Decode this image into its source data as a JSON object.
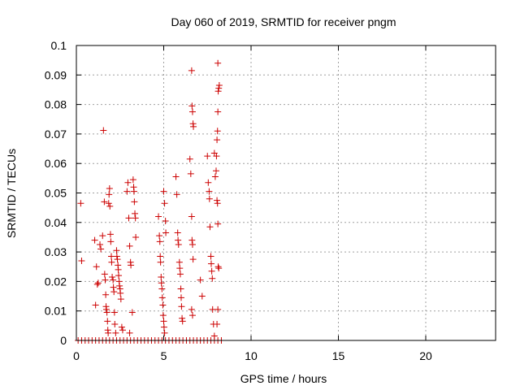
{
  "chart_data": {
    "type": "scatter",
    "title": "Day 060 of 2019, SRMTID for receiver pngm",
    "xlabel": "GPS time / hours",
    "ylabel": "SRMTID / TECUs",
    "xlim": [
      0,
      24
    ],
    "ylim": [
      0,
      0.1
    ],
    "x_ticks": [
      0,
      5,
      10,
      15,
      20
    ],
    "x_tick_labels": [
      "0",
      "5",
      "10",
      "15",
      "20"
    ],
    "y_ticks": [
      0,
      0.01,
      0.02,
      0.03,
      0.04,
      0.05,
      0.06,
      0.07,
      0.08,
      0.09,
      0.1
    ],
    "y_tick_labels": [
      "0",
      "0.01",
      "0.02",
      "0.03",
      "0.04",
      "0.05",
      "0.06",
      "0.07",
      "0.08",
      "0.09",
      "0.1"
    ],
    "grid": true,
    "marker": "plus",
    "color": "#cc0000",
    "series": [
      {
        "points": [
          [
            0.25,
            0.0465
          ],
          [
            0.3,
            0.027
          ],
          [
            1.05,
            0.034
          ],
          [
            1.1,
            0.012
          ],
          [
            1.15,
            0.025
          ],
          [
            1.2,
            0.019
          ],
          [
            1.25,
            0.0195
          ],
          [
            1.35,
            0.0325
          ],
          [
            1.4,
            0.031
          ],
          [
            1.5,
            0.0355
          ],
          [
            1.55,
            0.0712
          ],
          [
            1.6,
            0.047
          ],
          [
            1.62,
            0.0225
          ],
          [
            1.65,
            0.0205
          ],
          [
            1.68,
            0.0155
          ],
          [
            1.7,
            0.0115
          ],
          [
            1.72,
            0.0105
          ],
          [
            1.75,
            0.0095
          ],
          [
            1.78,
            0.0065
          ],
          [
            1.8,
            0.0035
          ],
          [
            1.82,
            0.0025
          ],
          [
            1.85,
            0.0465
          ],
          [
            1.87,
            0.0495
          ],
          [
            1.9,
            0.0515
          ],
          [
            1.92,
            0.0455
          ],
          [
            1.95,
            0.036
          ],
          [
            1.97,
            0.0335
          ],
          [
            2.0,
            0.0285
          ],
          [
            2.02,
            0.0265
          ],
          [
            2.05,
            0.0215
          ],
          [
            2.1,
            0.0205
          ],
          [
            2.12,
            0.018
          ],
          [
            2.15,
            0.0165
          ],
          [
            2.18,
            0.0095
          ],
          [
            2.2,
            0.0055
          ],
          [
            2.25,
            0.0025
          ],
          [
            2.3,
            0.0305
          ],
          [
            2.32,
            0.0285
          ],
          [
            2.35,
            0.0275
          ],
          [
            2.38,
            0.0255
          ],
          [
            2.4,
            0.024
          ],
          [
            2.42,
            0.022
          ],
          [
            2.45,
            0.02
          ],
          [
            2.47,
            0.0185
          ],
          [
            2.5,
            0.0175
          ],
          [
            2.52,
            0.016
          ],
          [
            2.55,
            0.014
          ],
          [
            2.6,
            0.0045
          ],
          [
            2.65,
            0.0035
          ],
          [
            2.9,
            0.0505
          ],
          [
            2.95,
            0.0535
          ],
          [
            3.0,
            0.0415
          ],
          [
            3.05,
            0.032
          ],
          [
            3.1,
            0.0265
          ],
          [
            3.12,
            0.0255
          ],
          [
            3.2,
            0.0095
          ],
          [
            3.05,
            0.0025
          ],
          [
            3.25,
            0.0545
          ],
          [
            3.28,
            0.052
          ],
          [
            3.3,
            0.0505
          ],
          [
            3.32,
            0.047
          ],
          [
            3.35,
            0.043
          ],
          [
            3.38,
            0.0415
          ],
          [
            3.4,
            0.035
          ],
          [
            4.7,
            0.042
          ],
          [
            4.75,
            0.0355
          ],
          [
            4.78,
            0.0335
          ],
          [
            4.8,
            0.0285
          ],
          [
            4.82,
            0.0265
          ],
          [
            4.85,
            0.0215
          ],
          [
            4.87,
            0.0195
          ],
          [
            4.9,
            0.0175
          ],
          [
            4.92,
            0.0145
          ],
          [
            4.95,
            0.012
          ],
          [
            4.97,
            0.0085
          ],
          [
            5.0,
            0.0065
          ],
          [
            5.02,
            0.0045
          ],
          [
            5.05,
            0.0025
          ],
          [
            5.0,
            0.0505
          ],
          [
            5.05,
            0.0465
          ],
          [
            5.1,
            0.0405
          ],
          [
            5.12,
            0.0365
          ],
          [
            5.7,
            0.0555
          ],
          [
            5.75,
            0.0495
          ],
          [
            5.8,
            0.0365
          ],
          [
            5.82,
            0.034
          ],
          [
            5.85,
            0.0325
          ],
          [
            5.9,
            0.0265
          ],
          [
            5.92,
            0.0245
          ],
          [
            5.95,
            0.0225
          ],
          [
            5.98,
            0.0175
          ],
          [
            6.0,
            0.0145
          ],
          [
            6.02,
            0.0115
          ],
          [
            6.05,
            0.0075
          ],
          [
            6.08,
            0.0065
          ],
          [
            6.5,
            0.0615
          ],
          [
            6.55,
            0.0565
          ],
          [
            6.6,
            0.0915
          ],
          [
            6.62,
            0.0795
          ],
          [
            6.65,
            0.0775
          ],
          [
            6.68,
            0.0735
          ],
          [
            6.7,
            0.0725
          ],
          [
            6.6,
            0.042
          ],
          [
            6.62,
            0.034
          ],
          [
            6.65,
            0.0325
          ],
          [
            6.68,
            0.0275
          ],
          [
            6.6,
            0.0105
          ],
          [
            6.65,
            0.0085
          ],
          [
            7.1,
            0.0205
          ],
          [
            7.2,
            0.015
          ],
          [
            7.5,
            0.0625
          ],
          [
            7.55,
            0.0535
          ],
          [
            7.6,
            0.0505
          ],
          [
            7.62,
            0.048
          ],
          [
            7.65,
            0.0385
          ],
          [
            7.7,
            0.0285
          ],
          [
            7.72,
            0.026
          ],
          [
            7.75,
            0.0235
          ],
          [
            7.78,
            0.021
          ],
          [
            7.8,
            0.0105
          ],
          [
            7.85,
            0.0055
          ],
          [
            7.9,
            0.0015
          ],
          [
            7.9,
            0.0635
          ],
          [
            7.95,
            0.0555
          ],
          [
            8.0,
            0.0575
          ],
          [
            8.02,
            0.0625
          ],
          [
            8.05,
            0.068
          ],
          [
            8.08,
            0.071
          ],
          [
            8.1,
            0.0775
          ],
          [
            8.12,
            0.0845
          ],
          [
            8.15,
            0.0855
          ],
          [
            8.18,
            0.0865
          ],
          [
            8.1,
            0.094
          ],
          [
            8.05,
            0.0475
          ],
          [
            8.08,
            0.0465
          ],
          [
            8.1,
            0.0395
          ],
          [
            8.12,
            0.025
          ],
          [
            8.15,
            0.0245
          ],
          [
            8.1,
            0.0105
          ],
          [
            8.05,
            0.0055
          ],
          [
            0.1,
            0
          ],
          [
            0.3,
            0
          ],
          [
            0.5,
            0
          ],
          [
            0.7,
            0
          ],
          [
            0.9,
            0
          ],
          [
            1.1,
            0
          ],
          [
            1.3,
            0
          ],
          [
            1.5,
            0
          ],
          [
            1.7,
            0
          ],
          [
            1.9,
            0
          ],
          [
            2.1,
            0
          ],
          [
            2.3,
            0
          ],
          [
            2.5,
            0
          ],
          [
            2.7,
            0
          ],
          [
            2.9,
            0
          ],
          [
            3.1,
            0
          ],
          [
            3.3,
            0
          ],
          [
            3.5,
            0
          ],
          [
            3.7,
            0
          ],
          [
            3.9,
            0
          ],
          [
            4.1,
            0
          ],
          [
            4.3,
            0
          ],
          [
            4.5,
            0
          ],
          [
            4.7,
            0
          ],
          [
            4.9,
            0
          ],
          [
            5.1,
            0
          ],
          [
            5.3,
            0
          ],
          [
            5.5,
            0
          ],
          [
            5.7,
            0
          ],
          [
            5.9,
            0
          ],
          [
            6.1,
            0
          ],
          [
            6.3,
            0
          ],
          [
            6.5,
            0
          ],
          [
            6.7,
            0
          ],
          [
            6.9,
            0
          ],
          [
            7.1,
            0
          ],
          [
            7.3,
            0
          ],
          [
            7.5,
            0
          ],
          [
            7.7,
            0
          ],
          [
            7.9,
            0
          ],
          [
            8.1,
            0
          ],
          [
            8.3,
            0
          ]
        ]
      }
    ]
  }
}
